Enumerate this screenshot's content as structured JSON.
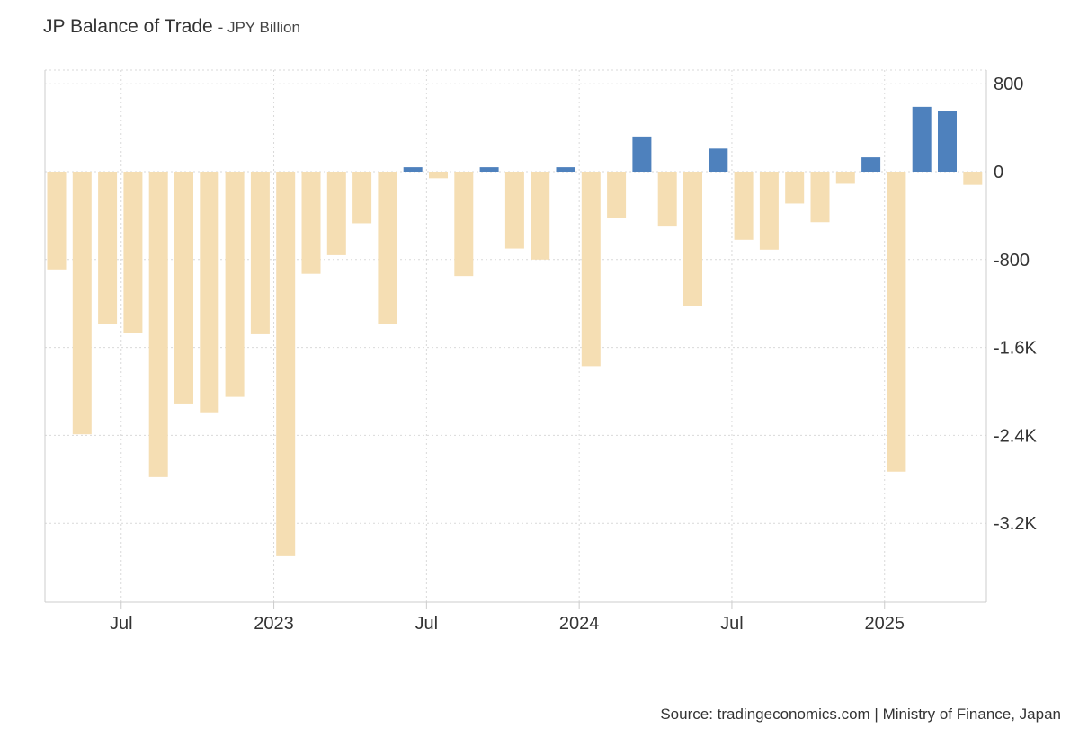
{
  "header": {
    "title": "JP Balance of Trade",
    "subtitle": "- JPY Billion"
  },
  "footer": {
    "source": "Source: tradingeconomics.com | Ministry of Finance, Japan"
  },
  "chart_data": {
    "type": "bar",
    "title": "JP Balance of Trade",
    "ylabel": "JPY Billion",
    "ylim": [
      -3900,
      900
    ],
    "categories": [
      "2022-04",
      "2022-05",
      "2022-06",
      "2022-07",
      "2022-08",
      "2022-09",
      "2022-10",
      "2022-11",
      "2022-12",
      "2023-01",
      "2023-02",
      "2023-03",
      "2023-04",
      "2023-05",
      "2023-06",
      "2023-07",
      "2023-08",
      "2023-09",
      "2023-10",
      "2023-11",
      "2023-12",
      "2024-01",
      "2024-02",
      "2024-03",
      "2024-04",
      "2024-05",
      "2024-06",
      "2024-07",
      "2024-08",
      "2024-09",
      "2024-10",
      "2024-11",
      "2024-12",
      "2025-01",
      "2025-02",
      "2025-03",
      "2025-04"
    ],
    "values": [
      -890,
      -2390,
      -1390,
      -1470,
      -2780,
      -2110,
      -2190,
      -2050,
      -1480,
      -3500,
      -930,
      -760,
      -470,
      -1390,
      40,
      -60,
      -950,
      40,
      -700,
      -800,
      40,
      -1770,
      -420,
      320,
      -500,
      -1220,
      210,
      -620,
      -710,
      -290,
      -460,
      -110,
      130,
      -2730,
      590,
      550,
      -120
    ],
    "colors": {
      "positive": "#4e81bd",
      "negative": "#f5deb3"
    },
    "y_ticks": [
      {
        "value": 800,
        "label": "800"
      },
      {
        "value": 0,
        "label": "0"
      },
      {
        "value": -800,
        "label": "-800"
      },
      {
        "value": -1600,
        "label": "-1.6K"
      },
      {
        "value": -2400,
        "label": "-2.4K"
      },
      {
        "value": -3200,
        "label": "-3.2K"
      }
    ],
    "x_ticks": [
      {
        "index": 3,
        "label": "Jul"
      },
      {
        "index": 9,
        "label": "2023"
      },
      {
        "index": 15,
        "label": "Jul"
      },
      {
        "index": 21,
        "label": "2024"
      },
      {
        "index": 27,
        "label": "Jul"
      },
      {
        "index": 33,
        "label": "2025"
      }
    ],
    "grid": true
  }
}
